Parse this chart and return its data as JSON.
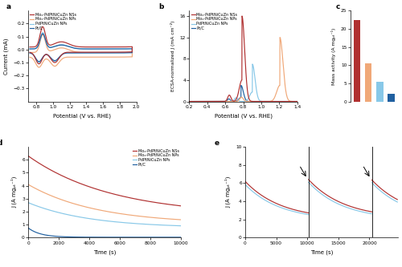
{
  "colors": {
    "dark_red": "#B03030",
    "light_orange": "#F0A878",
    "light_blue": "#88C8E8",
    "dark_blue": "#2060A0"
  },
  "legend_labels": [
    "Moₓ-PdPtNiCuZn NSs",
    "Moₓ-PdPtNiCuZn NPs",
    "PdPtNiCuZn NPs",
    "Pt/C"
  ],
  "panel_a": {
    "xlabel": "Potential (V vs. RHE)",
    "ylabel": "Current (mA)",
    "xlim": [
      0.7,
      2.0
    ],
    "ylim": [
      -0.4,
      0.3
    ],
    "yticks": [
      -0.3,
      -0.2,
      -0.1,
      0.0,
      0.1,
      0.2
    ]
  },
  "panel_b": {
    "xlabel": "Potential (V vs. RHE)",
    "ylabel": "ECSA-normalized J (mA cm⁻²)",
    "xlim": [
      0.2,
      1.4
    ],
    "ylim": [
      0,
      17
    ],
    "yticks": [
      0,
      4,
      8,
      12,
      16
    ]
  },
  "panel_c": {
    "ylabel": "Mass activity (A mgₚₜ⁻¹)",
    "ylim": [
      0,
      25
    ],
    "yticks": [
      0,
      5,
      10,
      15,
      20,
      25
    ],
    "bar_vals": [
      22.5,
      10.5,
      5.5,
      2.2
    ]
  },
  "panel_d": {
    "xlabel": "Time (s)",
    "ylabel": "J (A mgₚₜ⁻¹)",
    "xlim": [
      0,
      10000
    ],
    "ylim": [
      0,
      7
    ],
    "yticks": [
      0,
      1,
      2,
      3,
      4,
      5,
      6
    ]
  },
  "panel_e": {
    "xlabel": "Time (s)",
    "ylabel": "J (A mgₚₜ⁻¹)",
    "xlim": [
      0,
      24600
    ],
    "ylim": [
      0,
      10
    ],
    "yticks": [
      0,
      2,
      4,
      6,
      8,
      10
    ],
    "vline1": 10200,
    "vline2": 20400
  }
}
